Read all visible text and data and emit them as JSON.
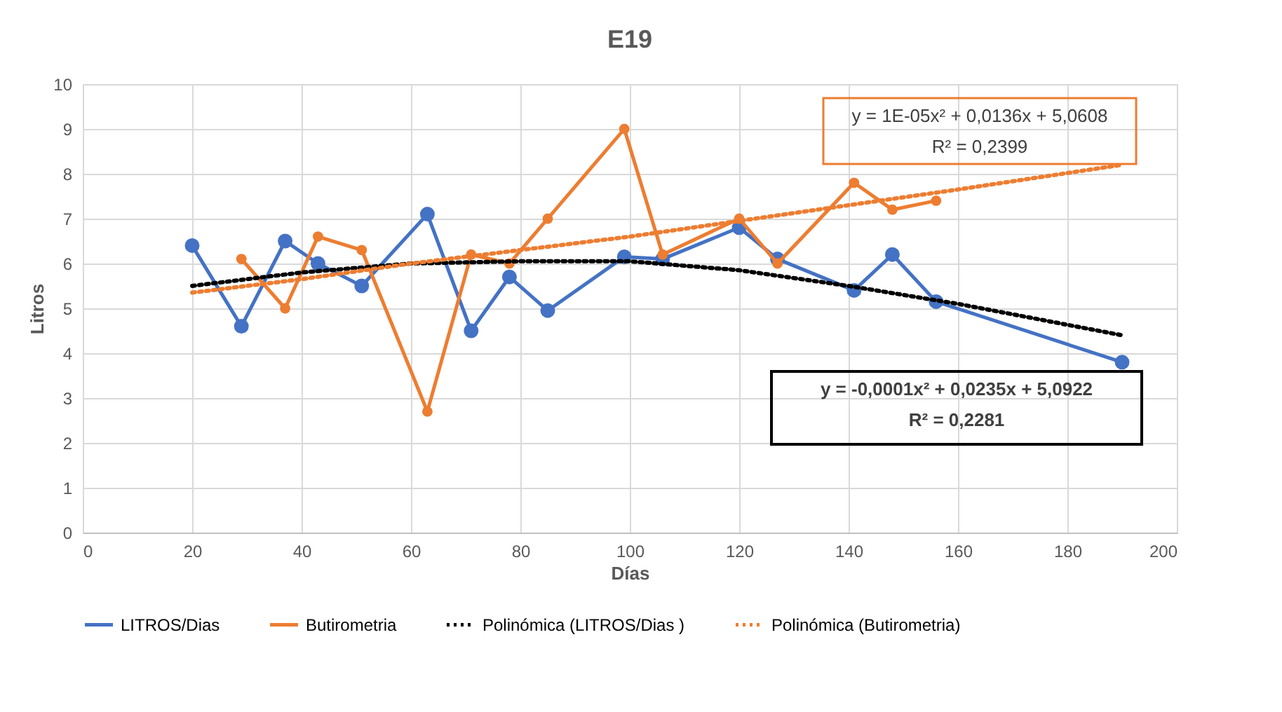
{
  "chart_data": {
    "type": "line",
    "title": "E19",
    "xlabel": "Días",
    "ylabel": "Litros",
    "xlim": [
      0,
      200
    ],
    "xticks": [
      0,
      20,
      40,
      60,
      80,
      100,
      120,
      140,
      160,
      180,
      200
    ],
    "ylim": [
      0,
      10
    ],
    "yticks": [
      0,
      1,
      2,
      3,
      4,
      5,
      6,
      7,
      8,
      9,
      10
    ],
    "grid": true,
    "legend": "bottom",
    "series": [
      {
        "name": "LITROS/Dias",
        "color": "#4472c4",
        "marker": "circle",
        "line_style": "solid",
        "x": [
          20,
          29,
          37,
          43,
          51,
          63,
          71,
          78,
          85,
          99,
          106,
          120,
          127,
          141,
          148,
          156,
          190
        ],
        "values": [
          6.4,
          4.6,
          6.5,
          6.0,
          5.5,
          7.1,
          4.5,
          5.7,
          4.95,
          6.15,
          6.1,
          6.8,
          6.1,
          5.4,
          6.2,
          5.15,
          3.8
        ]
      },
      {
        "name": "Butirometria",
        "color": "#ed7d31",
        "marker": "circle",
        "line_style": "solid",
        "x": [
          29,
          37,
          43,
          51,
          63,
          71,
          78,
          85,
          99,
          106,
          120,
          127,
          141,
          148,
          156
        ],
        "values": [
          6.1,
          5.0,
          6.6,
          6.3,
          2.7,
          6.2,
          6.0,
          7.0,
          9.0,
          6.2,
          7.0,
          6.0,
          7.8,
          7.2,
          7.4
        ]
      },
      {
        "name": "Polinómica (LITROS/Dias )",
        "color": "#000000",
        "marker": "none",
        "line_style": "dotted",
        "x": [
          20,
          40,
          60,
          80,
          100,
          120,
          140,
          160,
          190
        ],
        "values": [
          5.5,
          5.8,
          6.0,
          6.05,
          6.05,
          5.85,
          5.5,
          5.1,
          4.4
        ]
      },
      {
        "name": "Polinómica (Butirometria)",
        "color": "#ed7d31",
        "marker": "none",
        "line_style": "dotted",
        "x": [
          20,
          40,
          60,
          80,
          100,
          120,
          140,
          160,
          190
        ],
        "values": [
          5.35,
          5.65,
          6.0,
          6.3,
          6.6,
          6.95,
          7.3,
          7.65,
          8.2
        ]
      }
    ],
    "annotations": [
      "y = 1E-05x² + 0,0136x + 5,0608",
      "R² = 0,2399",
      "y = -0,0001x² + 0,0235x + 5,0922",
      "R² = 0,2281"
    ]
  }
}
